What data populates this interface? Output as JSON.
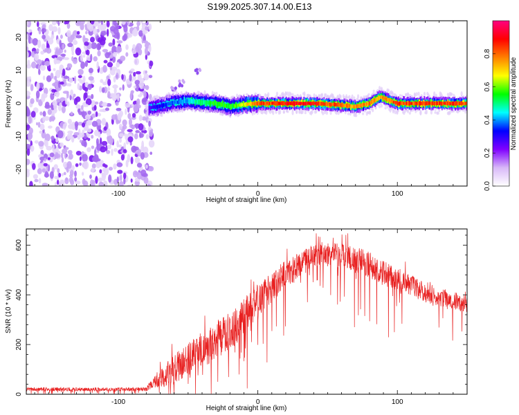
{
  "title": "S199.2025.307.14.00.E13",
  "chart_data": [
    {
      "type": "heatmap",
      "xlabel": "Height of straight line (km)",
      "ylabel": "Frequency (Hz)",
      "xlim": [
        -166,
        150
      ],
      "ylim": [
        -25,
        25
      ],
      "xticks": [
        -100,
        0,
        100
      ],
      "yticks": [
        -20,
        -10,
        0,
        10,
        20
      ],
      "colorbar": {
        "label": "Normalized spectral amplitude",
        "range": [
          0,
          1
        ],
        "ticks": [
          "0.0",
          "0.2",
          "0.4",
          "0.6",
          "0.8"
        ],
        "colors": [
          "#ffffff",
          "#d8b8f8",
          "#8000ff",
          "#0000ff",
          "#00ffff",
          "#00ff00",
          "#ffff00",
          "#ff8000",
          "#ff0000",
          "#ff0080"
        ]
      },
      "noise_region_x": [
        -166,
        -80
      ],
      "center_line": [
        {
          "x": -80,
          "y": -1.5,
          "amp": 0.25
        },
        {
          "x": -70,
          "y": -0.8,
          "amp": 0.35
        },
        {
          "x": -60,
          "y": 0.3,
          "amp": 0.4
        },
        {
          "x": -50,
          "y": 0.8,
          "amp": 0.45
        },
        {
          "x": -40,
          "y": 0.3,
          "amp": 0.55
        },
        {
          "x": -30,
          "y": 0.0,
          "amp": 0.6
        },
        {
          "x": -20,
          "y": -1.0,
          "amp": 0.6
        },
        {
          "x": -10,
          "y": -0.3,
          "amp": 0.7
        },
        {
          "x": 0,
          "y": 0.0,
          "amp": 0.9
        },
        {
          "x": 20,
          "y": 0.0,
          "amp": 0.95
        },
        {
          "x": 40,
          "y": 0.0,
          "amp": 0.95
        },
        {
          "x": 60,
          "y": -0.5,
          "amp": 0.85
        },
        {
          "x": 70,
          "y": -1.0,
          "amp": 0.8
        },
        {
          "x": 80,
          "y": 0.0,
          "amp": 0.85
        },
        {
          "x": 88,
          "y": 2.0,
          "amp": 0.8
        },
        {
          "x": 100,
          "y": 0.0,
          "amp": 0.9
        },
        {
          "x": 120,
          "y": 0.0,
          "amp": 0.9
        },
        {
          "x": 150,
          "y": 0.0,
          "amp": 0.9
        }
      ],
      "spur": [
        {
          "x": -60,
          "y": 4.0
        },
        {
          "x": -55,
          "y": 6.0
        },
        {
          "x": -43,
          "y": 10.0
        }
      ]
    },
    {
      "type": "line",
      "xlabel": "Height of straight line (km)",
      "ylabel": "SNR (10 * v/v)",
      "xlim": [
        -166,
        150
      ],
      "ylim": [
        0,
        665
      ],
      "xticks": [
        -100,
        0,
        100
      ],
      "yticks": [
        0,
        200,
        400,
        600
      ],
      "series": [
        {
          "color": "#e82020",
          "envelope": [
            {
              "x": -166,
              "base": 20,
              "noise": 15
            },
            {
              "x": -80,
              "base": 20,
              "noise": 15
            },
            {
              "x": -72,
              "base": 60,
              "noise": 80
            },
            {
              "x": -60,
              "base": 100,
              "noise": 120
            },
            {
              "x": -40,
              "base": 180,
              "noise": 150
            },
            {
              "x": -20,
              "base": 250,
              "noise": 160
            },
            {
              "x": 0,
              "base": 380,
              "noise": 130
            },
            {
              "x": 20,
              "base": 480,
              "noise": 120
            },
            {
              "x": 40,
              "base": 560,
              "noise": 90
            },
            {
              "x": 60,
              "base": 560,
              "noise": 100
            },
            {
              "x": 80,
              "base": 520,
              "noise": 110
            },
            {
              "x": 100,
              "base": 460,
              "noise": 100
            },
            {
              "x": 120,
              "base": 410,
              "noise": 80
            },
            {
              "x": 150,
              "base": 360,
              "noise": 70
            }
          ]
        }
      ]
    }
  ]
}
